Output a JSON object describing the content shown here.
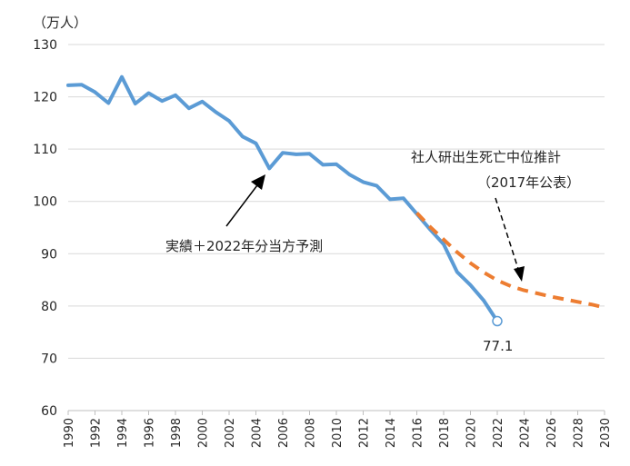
{
  "chart_data": {
    "type": "line",
    "unit_label": "（万人）",
    "ylim": [
      60,
      130
    ],
    "yticks": [
      60,
      70,
      80,
      90,
      100,
      110,
      120,
      130
    ],
    "xlim": [
      1990,
      2030
    ],
    "xticks": [
      1990,
      1992,
      1994,
      1996,
      1998,
      2000,
      2002,
      2004,
      2006,
      2008,
      2010,
      2012,
      2014,
      2016,
      2018,
      2020,
      2022,
      2024,
      2026,
      2028,
      2030
    ],
    "grid": true,
    "series": [
      {
        "key": "actual",
        "color": "#5b9bd5",
        "x": [
          1990,
          1991,
          1992,
          1993,
          1994,
          1995,
          1996,
          1997,
          1998,
          1999,
          2000,
          2001,
          2002,
          2003,
          2004,
          2005,
          2006,
          2007,
          2008,
          2009,
          2010,
          2011,
          2012,
          2013,
          2014,
          2015,
          2016,
          2017,
          2018,
          2019,
          2020,
          2021,
          2022
        ],
        "y": [
          122.2,
          122.3,
          120.9,
          118.8,
          123.8,
          118.7,
          120.7,
          119.2,
          120.3,
          117.8,
          119.1,
          117.1,
          115.4,
          112.4,
          111.1,
          106.3,
          109.3,
          109.0,
          109.1,
          107.0,
          107.1,
          105.1,
          103.7,
          103.0,
          100.4,
          100.6,
          97.6,
          94.6,
          91.8,
          86.5,
          84.0,
          81.0,
          77.1
        ],
        "marker_last": true
      },
      {
        "key": "projection",
        "color": "#ed7d31",
        "dashed": true,
        "x": [
          2016,
          2017,
          2018,
          2019,
          2020,
          2021,
          2022,
          2023,
          2024,
          2025,
          2026,
          2027,
          2028,
          2029,
          2030
        ],
        "y": [
          97.8,
          95.1,
          92.7,
          90.3,
          88.2,
          86.4,
          84.9,
          83.8,
          83.0,
          82.4,
          81.8,
          81.3,
          80.8,
          80.3,
          79.7
        ]
      }
    ],
    "annotations": {
      "actual_label": "実績＋2022年分当方予測",
      "projection_label_line1": "社人研出生死亡中位推計",
      "projection_label_line2": "（2017年公表）",
      "last_value_label": "77.1"
    }
  }
}
